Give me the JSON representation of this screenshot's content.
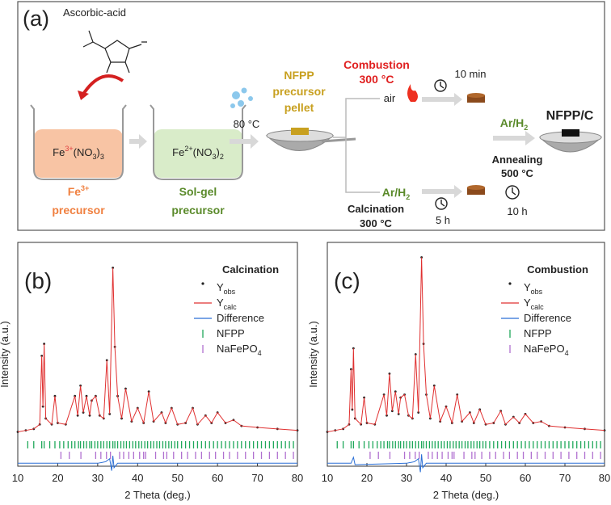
{
  "diagram": {
    "panel_label": "(a)",
    "ascorbic": "Ascorbic-acid",
    "fe3_salt": [
      "Fe",
      "3+",
      "(NO",
      "3",
      ")",
      "3"
    ],
    "fe3_label": [
      "Fe",
      "3+",
      "precursor"
    ],
    "fe2_salt": [
      "Fe",
      "2+",
      "(NO",
      "3",
      ")",
      "2"
    ],
    "solgel_label": [
      "Sol-gel",
      "precursor"
    ],
    "temp_80": "80 °C",
    "pellet_label": [
      "NFPP",
      "precursor",
      "pellet"
    ],
    "combustion": {
      "title": "Combustion",
      "temp": "300 °C",
      "atmosphere": "air",
      "time": "10 min"
    },
    "calcination": {
      "atmosphere": [
        "Ar/H",
        "2"
      ],
      "time": "5 h",
      "title": "Calcination",
      "temp": "300 °C"
    },
    "annealing": {
      "atmosphere": [
        "Ar/H",
        "2"
      ],
      "title": "Annealing",
      "temp": "500 °C",
      "time": "10 h",
      "product": "NFPP/C"
    }
  },
  "chart_data": [
    {
      "type": "line",
      "label": "(b)",
      "title": "Calcination",
      "xlabel": "2 Theta (deg.)",
      "ylabel": "Intensity (a.u.)",
      "legend": "upper right",
      "xlim": [
        10,
        80
      ],
      "xticks": [
        10,
        20,
        30,
        40,
        50,
        60,
        70,
        80
      ],
      "ylim": [
        -20,
        130
      ],
      "x": [
        10,
        12,
        14,
        15.5,
        16.0,
        16.3,
        16.6,
        17,
        18.5,
        19.3,
        20,
        22,
        24.3,
        25.0,
        25.7,
        26.4,
        27.2,
        28,
        28.5,
        29.5,
        30.5,
        31.5,
        32.3,
        33,
        33.8,
        34.3,
        35,
        36,
        37,
        38.5,
        40,
        41.5,
        42.8,
        44,
        46,
        47,
        48.5,
        50,
        52,
        53.8,
        55,
        57,
        58.5,
        60,
        62,
        64,
        66,
        70,
        75,
        80
      ],
      "series": [
        {
          "name": [
            "Y",
            "obs"
          ],
          "style": "dot",
          "color": "#222222",
          "values": [
            3,
            4,
            5,
            8,
            54,
            20,
            62,
            12,
            8,
            27,
            9,
            8,
            27,
            14,
            34,
            16,
            27,
            14,
            24,
            27,
            14,
            12,
            51,
            15,
            113,
            60,
            27,
            12,
            32,
            10,
            19,
            9,
            30,
            10,
            16,
            9,
            19,
            8,
            9,
            19,
            8,
            14,
            9,
            16,
            9,
            11,
            7,
            6,
            5,
            4
          ]
        },
        {
          "name": [
            "Y",
            "calc"
          ],
          "style": "line",
          "color": "#e03030",
          "values": [
            3,
            4,
            5,
            8,
            54,
            20,
            62,
            12,
            8,
            27,
            9,
            8,
            27,
            14,
            34,
            16,
            27,
            14,
            24,
            27,
            14,
            12,
            51,
            15,
            113,
            60,
            27,
            12,
            32,
            10,
            19,
            9,
            30,
            10,
            16,
            9,
            19,
            8,
            9,
            19,
            8,
            14,
            9,
            16,
            9,
            11,
            7,
            6,
            5,
            4
          ]
        },
        {
          "name": [
            "Difference"
          ],
          "style": "line",
          "color": "#2a6fd6",
          "x": [
            10,
            20,
            30,
            32,
            33,
            33.5,
            33.8,
            34.1,
            35,
            40,
            50,
            60,
            70,
            80
          ],
          "values": [
            -18,
            -18,
            -18,
            -17,
            -15,
            -23,
            -13,
            -21,
            -18,
            -18,
            -18,
            -18,
            -18,
            -18
          ]
        },
        {
          "name": [
            "NFPP"
          ],
          "style": "tick",
          "color": "#1fa85a",
          "x": [
            12.5,
            14,
            16,
            16.6,
            18,
            19.3,
            20.5,
            21.5,
            22.6,
            23.5,
            24.3,
            25.2,
            25.7,
            26.5,
            27.2,
            28,
            28.5,
            29.3,
            30,
            30.8,
            31.5,
            32.3,
            33,
            33.8,
            34.3,
            35,
            35.8,
            36.5,
            37.2,
            38,
            38.8,
            39.5,
            40.3,
            41,
            41.8,
            42.5,
            43.3,
            44,
            44.8,
            45.5,
            46.3,
            47,
            47.8,
            48.5,
            49.3,
            50,
            51,
            52,
            53,
            54,
            55,
            56,
            57,
            58,
            59,
            60,
            61,
            62,
            63,
            64,
            65,
            66,
            67,
            68,
            69,
            70,
            71,
            72,
            73,
            74,
            75,
            76,
            77,
            78,
            79
          ]
        },
        {
          "name": [
            "NaFePO",
            "4"
          ],
          "style": "tick",
          "color": "#b070d0",
          "x": [
            20.8,
            22.9,
            25.8,
            29.5,
            30.8,
            32.2,
            33.2,
            35.5,
            36.5,
            37.8,
            39,
            40.5,
            41.5,
            42,
            44.5,
            46.5,
            47.3,
            49,
            51,
            52.5,
            54.5,
            56,
            58,
            59.5,
            61.5,
            63,
            65,
            67,
            69,
            71,
            73,
            75,
            77,
            79
          ]
        }
      ]
    },
    {
      "type": "line",
      "label": "(c)",
      "title": "Combustion",
      "xlabel": "2 Theta (deg.)",
      "ylabel": "Intensity (a.u.)",
      "legend": "upper right",
      "xlim": [
        10,
        80
      ],
      "xticks": [
        10,
        20,
        30,
        40,
        50,
        60,
        70,
        80
      ],
      "ylim": [
        -20,
        130
      ],
      "x": [
        10,
        12,
        14,
        15.5,
        16.0,
        16.3,
        16.6,
        17,
        18.5,
        19.3,
        20,
        22,
        24.3,
        25.0,
        25.7,
        26.4,
        27.2,
        28,
        28.5,
        29.5,
        30.5,
        31.5,
        32.3,
        33,
        33.8,
        34.3,
        35,
        36,
        37,
        38.5,
        40,
        41.5,
        42.8,
        44,
        46,
        47,
        48.5,
        50,
        52,
        53.8,
        55,
        57,
        58.5,
        60,
        62,
        64,
        66,
        70,
        75,
        80
      ],
      "series": [
        {
          "name": [
            "Y",
            "obs"
          ],
          "style": "dot",
          "color": "#222222",
          "values": [
            3,
            4,
            5,
            8,
            45,
            18,
            59,
            12,
            8,
            26,
            9,
            8,
            28,
            14,
            42,
            17,
            30,
            15,
            26,
            28,
            14,
            12,
            55,
            16,
            120,
            62,
            28,
            12,
            34,
            10,
            20,
            9,
            28,
            10,
            16,
            9,
            18,
            8,
            9,
            17,
            8,
            13,
            9,
            15,
            9,
            10,
            7,
            6,
            5,
            4
          ]
        },
        {
          "name": [
            "Y",
            "calc"
          ],
          "style": "line",
          "color": "#e03030",
          "values": [
            3,
            4,
            5,
            8,
            45,
            18,
            59,
            12,
            8,
            26,
            9,
            8,
            28,
            14,
            42,
            17,
            30,
            15,
            26,
            28,
            14,
            12,
            55,
            16,
            120,
            62,
            28,
            12,
            34,
            10,
            20,
            9,
            28,
            10,
            16,
            9,
            18,
            8,
            9,
            17,
            8,
            13,
            9,
            15,
            9,
            10,
            7,
            6,
            5,
            4
          ]
        },
        {
          "name": [
            "Difference"
          ],
          "style": "line",
          "color": "#2a6fd6",
          "x": [
            10,
            16,
            16.6,
            17,
            30,
            32,
            33,
            33.5,
            33.8,
            34.1,
            35,
            40,
            50,
            60,
            70,
            80
          ],
          "values": [
            -18,
            -18,
            -14,
            -19,
            -18,
            -17,
            -15,
            -24,
            -12,
            -21,
            -18,
            -18,
            -18,
            -18,
            -18,
            -18
          ]
        },
        {
          "name": [
            "NFPP"
          ],
          "style": "tick",
          "color": "#1fa85a",
          "x": [
            12.5,
            14,
            16,
            16.6,
            18,
            19.3,
            20.5,
            21.5,
            22.6,
            23.5,
            24.3,
            25.2,
            25.7,
            26.5,
            27.2,
            28,
            28.5,
            29.3,
            30,
            30.8,
            31.5,
            32.3,
            33,
            33.8,
            34.3,
            35,
            35.8,
            36.5,
            37.2,
            38,
            38.8,
            39.5,
            40.3,
            41,
            41.8,
            42.5,
            43.3,
            44,
            44.8,
            45.5,
            46.3,
            47,
            47.8,
            48.5,
            49.3,
            50,
            51,
            52,
            53,
            54,
            55,
            56,
            57,
            58,
            59,
            60,
            61,
            62,
            63,
            64,
            65,
            66,
            67,
            68,
            69,
            70,
            71,
            72,
            73,
            74,
            75,
            76,
            77,
            78,
            79
          ]
        },
        {
          "name": [
            "NaFePO",
            "4"
          ],
          "style": "tick",
          "color": "#b070d0",
          "x": [
            20.8,
            22.9,
            25.8,
            29.5,
            30.8,
            32.2,
            33.2,
            35.5,
            36.5,
            37.8,
            39,
            40.5,
            41.5,
            42,
            44.5,
            46.5,
            47.3,
            49,
            51,
            52.5,
            54.5,
            56,
            58,
            59.5,
            61.5,
            63,
            65,
            67,
            69,
            71,
            73,
            75,
            77,
            79
          ]
        }
      ]
    }
  ]
}
